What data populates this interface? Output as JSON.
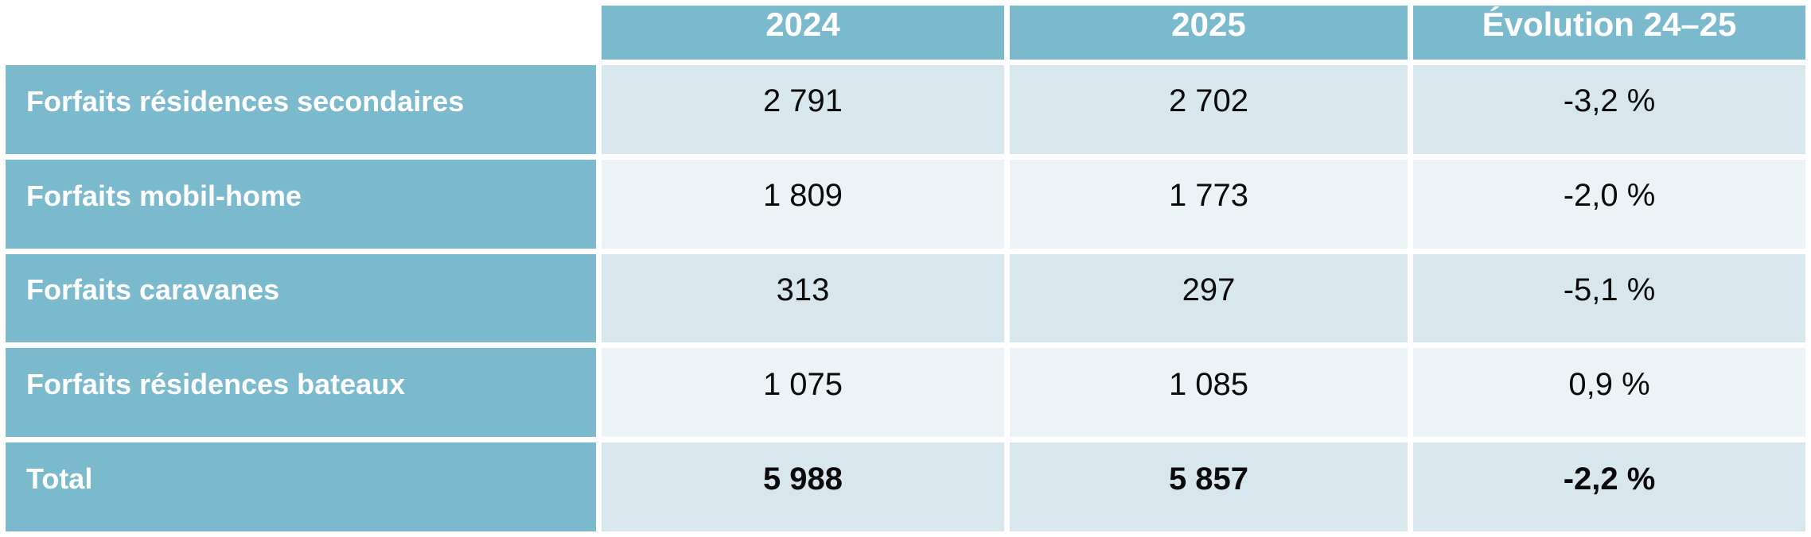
{
  "colors": {
    "header_blue": "#7bb9cd",
    "band_dark": "#d8e6ee",
    "band_light": "#ecf3f7",
    "header_text": "#ffffff",
    "cell_text": "#0b0b0b"
  },
  "table": {
    "columns": [
      "",
      "2024",
      "2025",
      "Évolution 24–25"
    ],
    "rows": [
      {
        "label": "Forfaits résidences secondaires",
        "v2024": "2 791",
        "v2025": "2 702",
        "evolution": "-3,2 %"
      },
      {
        "label": "Forfaits mobil-home",
        "v2024": "1 809",
        "v2025": "1 773",
        "evolution": "-2,0 %"
      },
      {
        "label": "Forfaits caravanes",
        "v2024": "313",
        "v2025": "297",
        "evolution": "-5,1 %"
      },
      {
        "label": "Forfaits résidences bateaux",
        "v2024": "1 075",
        "v2025": "1 085",
        "evolution": "0,9 %"
      },
      {
        "label": "Total",
        "v2024": "5 988",
        "v2025": "5 857",
        "evolution": "-2,2 %"
      }
    ]
  },
  "chart_data": {
    "type": "table",
    "title": "",
    "columns": [
      "2024",
      "2025",
      "Évolution 24–25"
    ],
    "categories": [
      "Forfaits résidences secondaires",
      "Forfaits mobil-home",
      "Forfaits caravanes",
      "Forfaits résidences bateaux",
      "Total"
    ],
    "series": [
      {
        "name": "2024",
        "values": [
          2791,
          1809,
          313,
          1075,
          5988
        ]
      },
      {
        "name": "2025",
        "values": [
          2702,
          1773,
          297,
          1085,
          5857
        ]
      },
      {
        "name": "Évolution 24–25 (%)",
        "values": [
          -3.2,
          -2.0,
          -5.1,
          0.9,
          -2.2
        ]
      }
    ],
    "layout": {
      "banded_rows": true,
      "header_fill": "#7bb9cd",
      "grid": "white-gutters"
    }
  }
}
